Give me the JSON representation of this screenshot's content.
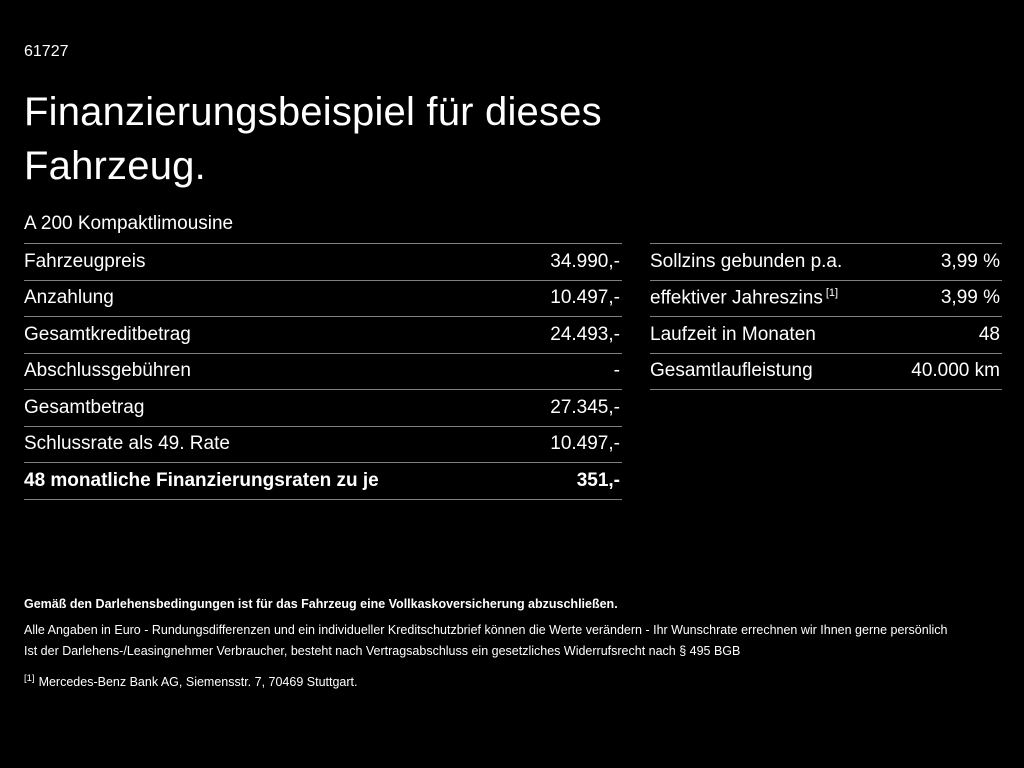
{
  "page": {
    "ref_number": "61727",
    "title_line1": "Finanzierungsbeispiel für dieses",
    "title_line2": "Fahrzeug.",
    "subtitle": "A 200 Kompaktlimousine"
  },
  "left_table": {
    "rows": [
      {
        "label": "Fahrzeugpreis",
        "value": "34.990,-"
      },
      {
        "label": "Anzahlung",
        "value": "10.497,-"
      },
      {
        "label": "Gesamtkreditbetrag",
        "value": "24.493,-"
      },
      {
        "label": "Abschlussgebühren",
        "value": "-"
      },
      {
        "label": "Gesamtbetrag",
        "value": "27.345,-"
      },
      {
        "label": "Schlussrate als 49. Rate",
        "value": "10.497,-"
      },
      {
        "label": "48 monatliche Finanzierungsraten zu je",
        "value": "351,-"
      }
    ]
  },
  "right_table": {
    "rows": [
      {
        "label": "Sollzins gebunden p.a.",
        "sup": "",
        "value": "3,99 %"
      },
      {
        "label": "effektiver Jahreszins",
        "sup": "[1]",
        "value": "3,99 %"
      },
      {
        "label": "Laufzeit in Monaten",
        "sup": "",
        "value": "48"
      },
      {
        "label": "Gesamtlaufleistung",
        "sup": "",
        "value": "40.000 km"
      }
    ]
  },
  "footer": {
    "line1": "Gemäß den Darlehensbedingungen ist für das Fahrzeug eine Vollkaskoversicherung abzuschließen.",
    "line2": "Alle Angaben in Euro - Rundungsdifferenzen und ein individueller Kreditschutzbrief können die Werte verändern - Ihr Wunschrate errechnen wir Ihnen gerne persönlich",
    "line3": "Ist der Darlehens-/Leasingnehmer Verbraucher, besteht nach Vertragsabschluss ein gesetzliches Widerrufsrecht nach § 495 BGB",
    "footnote_marker": "[1]",
    "footnote_text": "Mercedes-Benz Bank AG, Siemensstr. 7, 70469 Stuttgart."
  }
}
